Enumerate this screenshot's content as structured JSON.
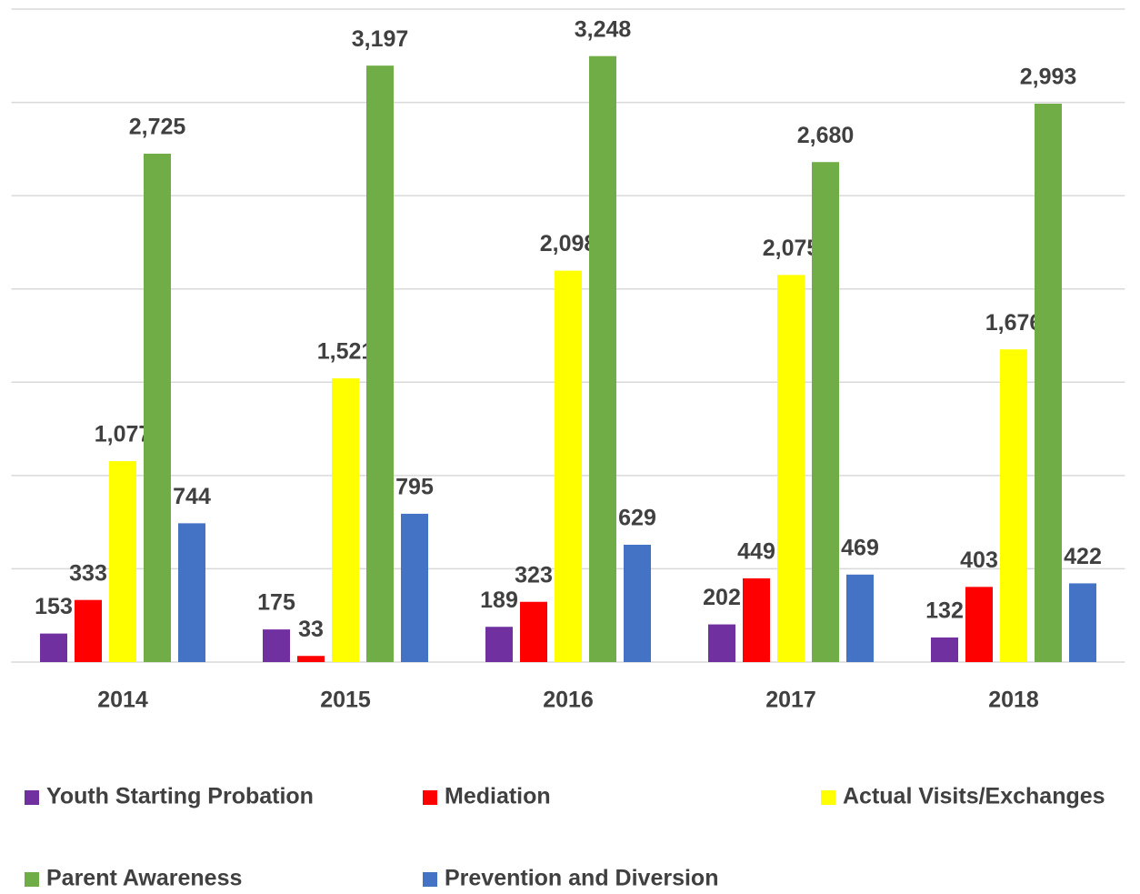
{
  "chart_data": {
    "type": "bar",
    "categories": [
      "2014",
      "2015",
      "2016",
      "2017",
      "2018"
    ],
    "series": [
      {
        "name": "Youth Starting Probation",
        "color": "#7030a0",
        "values": [
          153,
          175,
          189,
          202,
          132
        ],
        "value_labels": [
          "153",
          "175",
          "189",
          "202",
          "132"
        ]
      },
      {
        "name": "Mediation",
        "color": "#ff0000",
        "values": [
          333,
          33,
          323,
          449,
          403
        ],
        "value_labels": [
          "333",
          "33",
          "323",
          "449",
          "403"
        ]
      },
      {
        "name": "Actual Visits/Exchanges",
        "color": "#ffff00",
        "values": [
          1077,
          1521,
          2098,
          2075,
          1676
        ],
        "value_labels": [
          "1,077",
          "1,521",
          "2,098",
          "2,075",
          "1,676"
        ]
      },
      {
        "name": "Parent Awareness",
        "color": "#70ad47",
        "values": [
          2725,
          3197,
          3248,
          2680,
          2993
        ],
        "value_labels": [
          "2,725",
          "3,197",
          "3,248",
          "2,680",
          "2,993"
        ]
      },
      {
        "name": "Prevention and Diversion",
        "color": "#4472c4",
        "values": [
          744,
          795,
          629,
          469,
          422
        ],
        "value_labels": [
          "744",
          "795",
          "629",
          "469",
          "422"
        ]
      }
    ],
    "ylim": [
      0,
      3500
    ],
    "yticks": [
      0,
      500,
      1000,
      1500,
      2000,
      2500,
      3000,
      3500
    ],
    "grid": true,
    "legend": "bottom"
  }
}
